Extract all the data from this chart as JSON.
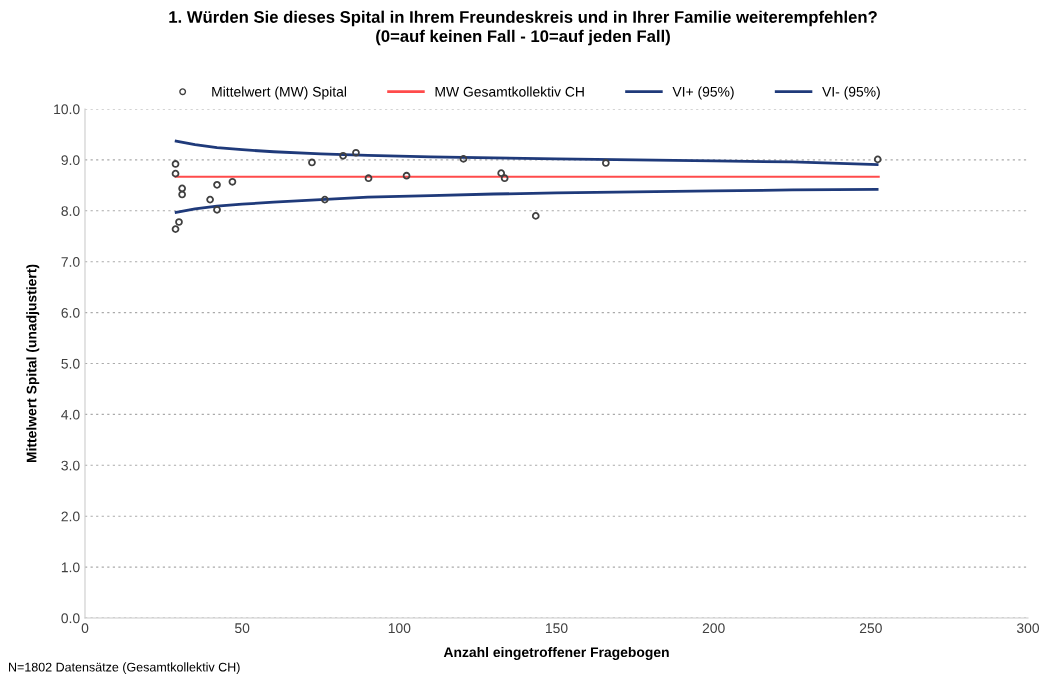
{
  "chart_data": {
    "type": "scatter",
    "title": "1. Würden Sie dieses Spital in Ihrem Freundeskreis und in Ihrer Familie weiterempfehlen?\n(0=auf keinen Fall - 10=auf jeden Fall)",
    "xlabel": "Anzahl eingetroffener Fragebogen",
    "ylabel": "Mittelwert Spital (unadjustiert)",
    "annotations": [
      "N=1802 Datensätze (Gesamtkollektiv CH)"
    ],
    "series": [
      {
        "name": "Mittelwert (MW) Spital",
        "marker": "circle",
        "color": "#404040",
        "x": [
          28.8,
          28.8,
          30.9,
          30.9,
          28.8,
          29.9,
          39.8,
          42.0,
          42.0,
          46.9,
          72.2,
          82.1,
          86.2,
          76.3,
          90.2,
          102.3,
          120.4,
          132.4,
          133.5,
          143.4,
          165.7,
          252.2
        ],
        "values": [
          8.92,
          8.73,
          8.44,
          8.32,
          7.64,
          7.78,
          8.22,
          8.51,
          8.02,
          8.57,
          8.95,
          9.08,
          9.14,
          8.22,
          8.64,
          8.69,
          9.02,
          8.74,
          8.64,
          7.9,
          8.94,
          9.01
        ]
      },
      {
        "name": "MW Gesamtkollektiv CH",
        "type": "line",
        "marker": "none",
        "color": "#ff4b4b",
        "x": [
          28.8,
          252.5
        ],
        "values": [
          8.67,
          8.67
        ]
      },
      {
        "name": "VI+ (95%)",
        "type": "line",
        "marker": "none",
        "color": "#1f3a7a",
        "x": [
          29,
          35,
          42,
          50,
          60,
          75,
          90,
          110,
          130,
          150,
          175,
          200,
          225,
          252
        ],
        "values": [
          9.37,
          9.3,
          9.24,
          9.2,
          9.16,
          9.12,
          9.09,
          9.06,
          9.04,
          9.02,
          9.0,
          8.98,
          8.96,
          8.91
        ]
      },
      {
        "name": "VI- (95%)",
        "type": "line",
        "marker": "none",
        "color": "#1f3a7a",
        "x": [
          29,
          35,
          42,
          50,
          60,
          75,
          90,
          110,
          130,
          150,
          175,
          200,
          225,
          252
        ],
        "values": [
          7.97,
          8.04,
          8.09,
          8.13,
          8.17,
          8.22,
          8.27,
          8.3,
          8.33,
          8.35,
          8.37,
          8.39,
          8.41,
          8.42
        ]
      }
    ],
    "xlim": [
      0,
      300
    ],
    "xticks": [
      0,
      50,
      100,
      150,
      200,
      250,
      300
    ],
    "ylim": [
      0,
      10
    ],
    "yticks": [
      {
        "value": 0,
        "label": "0.0"
      },
      {
        "value": 1,
        "label": "1.0"
      },
      {
        "value": 2,
        "label": "2.0"
      },
      {
        "value": 3,
        "label": "3.0"
      },
      {
        "value": 4,
        "label": "4.0"
      },
      {
        "value": 5,
        "label": "5.0"
      },
      {
        "value": 6,
        "label": "6.0"
      },
      {
        "value": 7,
        "label": "7.0"
      },
      {
        "value": 8,
        "label": "8.0"
      },
      {
        "value": 9,
        "label": "9.0"
      },
      {
        "value": 10,
        "label": "10.0"
      }
    ],
    "grid": "y",
    "legend": "top"
  }
}
